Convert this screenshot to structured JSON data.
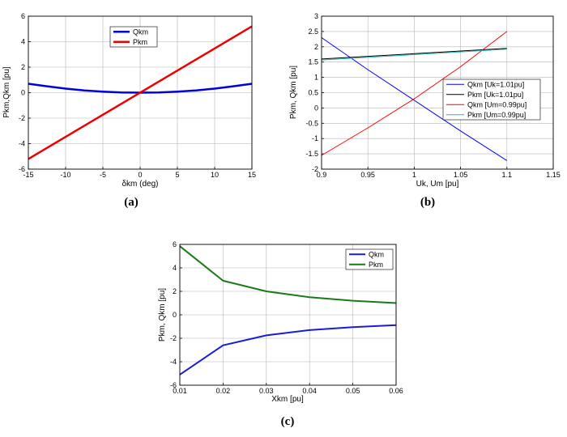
{
  "chart_data": [
    {
      "id": "a",
      "type": "line",
      "panel_label": "(a)",
      "xlabel": "δkm (deg)",
      "ylabel": "Pkm,Qkm [pu]",
      "xlim": [
        -15,
        15
      ],
      "ylim": [
        -6,
        6
      ],
      "xticks": [
        -15,
        -10,
        -5,
        0,
        5,
        10,
        15
      ],
      "yticks": [
        -6,
        -4,
        -2,
        0,
        2,
        4,
        6
      ],
      "grid": true,
      "legend_position": "top-center",
      "series": [
        {
          "name": "Qkm",
          "color": "#0000dd",
          "width": 2.5,
          "x": [
            -15,
            -12.5,
            -10,
            -7.5,
            -5,
            -2.5,
            0,
            2.5,
            5,
            7.5,
            10,
            12.5,
            15
          ],
          "y": [
            0.7,
            0.5,
            0.32,
            0.18,
            0.08,
            0.02,
            0,
            0.02,
            0.08,
            0.18,
            0.32,
            0.5,
            0.7
          ]
        },
        {
          "name": "Pkm",
          "color": "#ee0000",
          "width": 2.5,
          "x": [
            -15,
            15
          ],
          "y": [
            -5.2,
            5.2
          ]
        }
      ]
    },
    {
      "id": "b",
      "type": "line",
      "panel_label": "(b)",
      "xlabel": "Uk, Um [pu]",
      "ylabel": "Pkm, Qkm [pu]",
      "xlim": [
        0.9,
        1.15
      ],
      "ylim": [
        -2,
        3
      ],
      "xticks": [
        0.9,
        0.95,
        1,
        1.05,
        1.1,
        1.15
      ],
      "yticks": [
        -2,
        -1.5,
        -1,
        -0.5,
        0,
        0.5,
        1,
        1.5,
        2,
        2.5,
        3
      ],
      "grid": true,
      "legend_position": "bottom-right",
      "series": [
        {
          "name": "Qkm [Uk=1.01pu]",
          "color": "#0000ff",
          "width": 1,
          "x": [
            0.9,
            0.95,
            1.0,
            1.05,
            1.1
          ],
          "y": [
            2.3,
            1.25,
            0.25,
            -0.75,
            -1.72
          ]
        },
        {
          "name": "Pkm [Uk=1.01pu]",
          "color": "#000000",
          "width": 1,
          "x": [
            0.9,
            1.1
          ],
          "y": [
            1.6,
            1.95
          ]
        },
        {
          "name": "Qkm [Um=0.99pu]",
          "color": "#ff0000",
          "width": 1,
          "x": [
            0.9,
            0.95,
            1.0,
            1.05,
            1.1
          ],
          "y": [
            -1.55,
            -0.65,
            0.3,
            1.35,
            2.5
          ]
        },
        {
          "name": "Pkm [Um=0.99pu]",
          "color": "#2ab0b0",
          "width": 1,
          "x": [
            0.9,
            1.1
          ],
          "y": [
            1.57,
            1.92
          ]
        }
      ]
    },
    {
      "id": "c",
      "type": "line",
      "panel_label": "(c)",
      "xlabel": "Xkm [pu]",
      "ylabel": "Pkm, Qkm [pu]",
      "xlim": [
        0.01,
        0.06
      ],
      "ylim": [
        -6,
        6
      ],
      "xticks": [
        0.01,
        0.02,
        0.03,
        0.04,
        0.05,
        0.06
      ],
      "yticks": [
        -6,
        -4,
        -2,
        0,
        2,
        4,
        6
      ],
      "grid": true,
      "legend_position": "top-right",
      "series": [
        {
          "name": "Qkm",
          "color": "#1a1adc",
          "width": 2,
          "x": [
            0.01,
            0.02,
            0.03,
            0.04,
            0.05,
            0.06
          ],
          "y": [
            -5.1,
            -2.6,
            -1.75,
            -1.3,
            -1.05,
            -0.88
          ]
        },
        {
          "name": "Pkm",
          "color": "#1a7a1a",
          "width": 2,
          "x": [
            0.01,
            0.02,
            0.03,
            0.04,
            0.05,
            0.06
          ],
          "y": [
            5.85,
            2.9,
            2.0,
            1.5,
            1.2,
            1.0
          ]
        }
      ]
    }
  ]
}
